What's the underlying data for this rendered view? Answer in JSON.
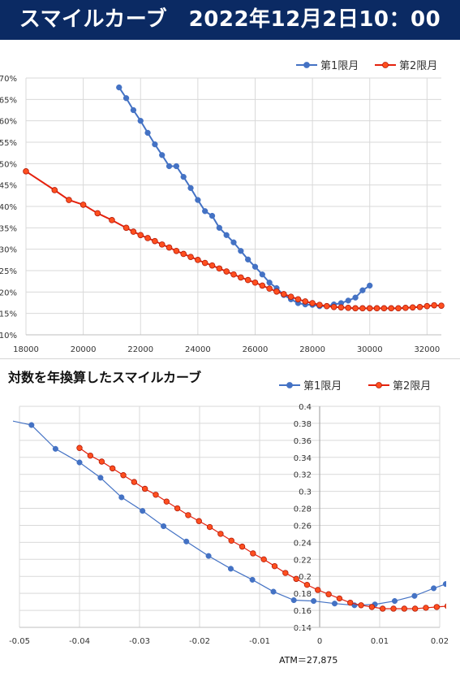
{
  "header": {
    "title": "スマイルカーブ　2022年12月2日10：00"
  },
  "section2": {
    "title": "対数を年換算したスマイルカーブ"
  },
  "footer": {
    "atm_label": "ATM＝27,875"
  },
  "colors": {
    "banner": "#0b2a63",
    "series1": "#4472c4",
    "series2": "#e5210d",
    "series2_fill": "#ff4f1f"
  },
  "chart_data": [
    {
      "type": "line",
      "title": "",
      "xlabel": "",
      "ylabel": "",
      "xlim": [
        18000,
        32500
      ],
      "ylim": [
        0.1,
        0.7
      ],
      "x_ticks": [
        "18000",
        "20000",
        "22000",
        "24000",
        "26000",
        "28000",
        "30000",
        "32000"
      ],
      "x_tick_values": [
        18000,
        20000,
        22000,
        24000,
        26000,
        28000,
        30000,
        32000
      ],
      "y_ticks": [
        "10%",
        "15%",
        "20%",
        "25%",
        "30%",
        "35%",
        "40%",
        "45%",
        "50%",
        "55%",
        "60%",
        "65%",
        "70%"
      ],
      "y_tick_values": [
        0.1,
        0.15,
        0.2,
        0.25,
        0.3,
        0.35,
        0.4,
        0.45,
        0.5,
        0.55,
        0.6,
        0.65,
        0.7
      ],
      "legend_position": "top-right",
      "grid": true,
      "series": [
        {
          "name": "第1限月",
          "color": "#4472c4",
          "points": [
            [
              21250,
              0.678
            ],
            [
              21500,
              0.653
            ],
            [
              21750,
              0.625
            ],
            [
              22000,
              0.6
            ],
            [
              22250,
              0.572
            ],
            [
              22500,
              0.545
            ],
            [
              22750,
              0.52
            ],
            [
              23000,
              0.494
            ],
            [
              23250,
              0.494
            ],
            [
              23500,
              0.469
            ],
            [
              23750,
              0.443
            ],
            [
              24000,
              0.415
            ],
            [
              24250,
              0.389
            ],
            [
              24500,
              0.378
            ],
            [
              24750,
              0.35
            ],
            [
              25000,
              0.333
            ],
            [
              25250,
              0.316
            ],
            [
              25500,
              0.296
            ],
            [
              25750,
              0.276
            ],
            [
              26000,
              0.259
            ],
            [
              26250,
              0.241
            ],
            [
              26500,
              0.222
            ],
            [
              26750,
              0.209
            ],
            [
              27000,
              0.193
            ],
            [
              27250,
              0.183
            ],
            [
              27500,
              0.174
            ],
            [
              27750,
              0.171
            ],
            [
              28000,
              0.17
            ],
            [
              28250,
              0.167
            ],
            [
              28500,
              0.167
            ],
            [
              28750,
              0.171
            ],
            [
              29000,
              0.174
            ],
            [
              29250,
              0.18
            ],
            [
              29500,
              0.187
            ],
            [
              29750,
              0.204
            ],
            [
              30000,
              0.215
            ]
          ]
        },
        {
          "name": "第2限月",
          "color": "#e5210d",
          "points": [
            [
              18000,
              0.482
            ],
            [
              19000,
              0.438
            ],
            [
              19500,
              0.415
            ],
            [
              20000,
              0.404
            ],
            [
              20500,
              0.384
            ],
            [
              21000,
              0.368
            ],
            [
              21500,
              0.35
            ],
            [
              21750,
              0.341
            ],
            [
              22000,
              0.333
            ],
            [
              22250,
              0.326
            ],
            [
              22500,
              0.319
            ],
            [
              22750,
              0.311
            ],
            [
              23000,
              0.304
            ],
            [
              23250,
              0.296
            ],
            [
              23500,
              0.289
            ],
            [
              23750,
              0.282
            ],
            [
              24000,
              0.275
            ],
            [
              24250,
              0.268
            ],
            [
              24500,
              0.262
            ],
            [
              24750,
              0.255
            ],
            [
              25000,
              0.248
            ],
            [
              25250,
              0.241
            ],
            [
              25500,
              0.234
            ],
            [
              25750,
              0.228
            ],
            [
              26000,
              0.222
            ],
            [
              26250,
              0.215
            ],
            [
              26500,
              0.208
            ],
            [
              26750,
              0.201
            ],
            [
              27000,
              0.195
            ],
            [
              27250,
              0.189
            ],
            [
              27500,
              0.183
            ],
            [
              27750,
              0.178
            ],
            [
              28000,
              0.174
            ],
            [
              28250,
              0.17
            ],
            [
              28500,
              0.167
            ],
            [
              28750,
              0.165
            ],
            [
              29000,
              0.164
            ],
            [
              29250,
              0.163
            ],
            [
              29500,
              0.162
            ],
            [
              29750,
              0.162
            ],
            [
              30000,
              0.162
            ],
            [
              30250,
              0.162
            ],
            [
              30500,
              0.162
            ],
            [
              30750,
              0.162
            ],
            [
              31000,
              0.162
            ],
            [
              31250,
              0.163
            ],
            [
              31500,
              0.164
            ],
            [
              31750,
              0.165
            ],
            [
              32000,
              0.167
            ],
            [
              32250,
              0.169
            ],
            [
              32500,
              0.168
            ]
          ]
        }
      ]
    },
    {
      "type": "line",
      "title": "対数を年換算したスマイルカーブ",
      "xlabel": "",
      "ylabel": "",
      "xlim": [
        -0.05,
        0.02
      ],
      "ylim": [
        0.14,
        0.4
      ],
      "x_ticks": [
        "-0.05",
        "-0.04",
        "-0.03",
        "-0.02",
        "-0.01",
        "0",
        "0.01",
        "0.02"
      ],
      "x_tick_values": [
        -0.05,
        -0.04,
        -0.03,
        -0.02,
        -0.01,
        0,
        0.01,
        0.02
      ],
      "y_ticks": [
        "0.14",
        "0.16",
        "0.18",
        "0.2",
        "0.22",
        "0.24",
        "0.26",
        "0.28",
        "0.3",
        "0.32",
        "0.34",
        "0.36",
        "0.38",
        "0.4"
      ],
      "y_tick_values": [
        0.14,
        0.16,
        0.18,
        0.2,
        0.22,
        0.24,
        0.26,
        0.28,
        0.3,
        0.32,
        0.34,
        0.36,
        0.38,
        0.4
      ],
      "legend_position": "top-right",
      "grid": true,
      "series": [
        {
          "name": "第1限月",
          "color": "#4472c4",
          "points": [
            [
              -0.052,
              0.384
            ],
            [
              -0.048,
              0.378
            ],
            [
              -0.044,
              0.35
            ],
            [
              -0.04,
              0.334
            ],
            [
              -0.0365,
              0.316
            ],
            [
              -0.033,
              0.293
            ],
            [
              -0.0295,
              0.277
            ],
            [
              -0.026,
              0.259
            ],
            [
              -0.0222,
              0.241
            ],
            [
              -0.0185,
              0.224
            ],
            [
              -0.0148,
              0.209
            ],
            [
              -0.0112,
              0.196
            ],
            [
              -0.0077,
              0.182
            ],
            [
              -0.0043,
              0.172
            ],
            [
              -0.001,
              0.171
            ],
            [
              0.0025,
              0.168
            ],
            [
              0.0058,
              0.166
            ],
            [
              0.0092,
              0.167
            ],
            [
              0.0125,
              0.171
            ],
            [
              0.0158,
              0.177
            ],
            [
              0.019,
              0.186
            ],
            [
              0.021,
              0.191
            ]
          ]
        },
        {
          "name": "第2限月",
          "color": "#e5210d",
          "points": [
            [
              -0.04,
              0.351
            ],
            [
              -0.0382,
              0.342
            ],
            [
              -0.0363,
              0.335
            ],
            [
              -0.0345,
              0.327
            ],
            [
              -0.0327,
              0.319
            ],
            [
              -0.0309,
              0.311
            ],
            [
              -0.0291,
              0.303
            ],
            [
              -0.0273,
              0.296
            ],
            [
              -0.0255,
              0.288
            ],
            [
              -0.0237,
              0.28
            ],
            [
              -0.0219,
              0.272
            ],
            [
              -0.0201,
              0.265
            ],
            [
              -0.0183,
              0.258
            ],
            [
              -0.0165,
              0.25
            ],
            [
              -0.0147,
              0.242
            ],
            [
              -0.0129,
              0.235
            ],
            [
              -0.0111,
              0.227
            ],
            [
              -0.0093,
              0.22
            ],
            [
              -0.0075,
              0.212
            ],
            [
              -0.0057,
              0.204
            ],
            [
              -0.0039,
              0.197
            ],
            [
              -0.0021,
              0.19
            ],
            [
              -0.0003,
              0.184
            ],
            [
              0.0015,
              0.179
            ],
            [
              0.0033,
              0.174
            ],
            [
              0.0051,
              0.169
            ],
            [
              0.0069,
              0.166
            ],
            [
              0.0087,
              0.164
            ],
            [
              0.0105,
              0.162
            ],
            [
              0.0123,
              0.162
            ],
            [
              0.0141,
              0.162
            ],
            [
              0.0159,
              0.162
            ],
            [
              0.0177,
              0.163
            ],
            [
              0.0195,
              0.164
            ],
            [
              0.0213,
              0.165
            ]
          ]
        }
      ]
    }
  ]
}
